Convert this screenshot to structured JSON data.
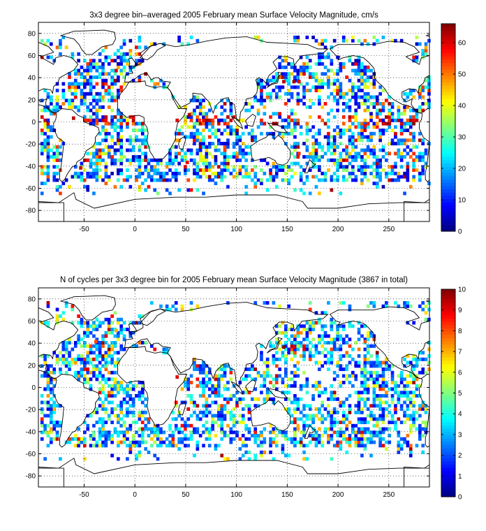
{
  "chart_data": [
    {
      "type": "heatmap",
      "title": "3x3 degree bin–averaged 2005 February mean Surface Velocity Magnitude, cm/s",
      "xlabel": "",
      "ylabel": "",
      "xlim": [
        -95,
        290
      ],
      "ylim": [
        -90,
        90
      ],
      "xticks": [
        -50,
        0,
        50,
        100,
        150,
        200,
        250
      ],
      "yticks": [
        80,
        60,
        40,
        20,
        0,
        -20,
        -40,
        -60,
        -80
      ],
      "grid": true,
      "bin_size_deg": 3,
      "colorbar": {
        "min": 0,
        "max": 66,
        "ticks": [
          0,
          10,
          20,
          30,
          40,
          50,
          60
        ],
        "colormap": "jet"
      },
      "bins_sample": [
        {
          "lon": -62,
          "lat": 2,
          "value": 62
        },
        {
          "lon": -50,
          "lat": 0,
          "value": 55
        },
        {
          "lon": -20,
          "lat": 45,
          "value": 60
        },
        {
          "lon": 40,
          "lat": 0,
          "value": 60
        },
        {
          "lon": 52,
          "lat": 5,
          "value": 64
        },
        {
          "lon": 62,
          "lat": 0,
          "value": 55
        },
        {
          "lon": 145,
          "lat": 35,
          "value": 62
        },
        {
          "lon": 155,
          "lat": 35,
          "value": 64
        },
        {
          "lon": 160,
          "lat": 35,
          "value": 60
        },
        {
          "lon": 225,
          "lat": -5,
          "value": 58
        },
        {
          "lon": 160,
          "lat": -30,
          "value": 55
        },
        {
          "lon": -55,
          "lat": -43,
          "value": 60
        },
        {
          "lon": 50,
          "lat": -38,
          "value": 58
        }
      ]
    },
    {
      "type": "heatmap",
      "title": "N of cycles per 3x3 degree bin for 2005 February mean Surface Velocity Magnitude (3867 in total)",
      "xlabel": "",
      "ylabel": "",
      "xlim": [
        -95,
        290
      ],
      "ylim": [
        -90,
        90
      ],
      "xticks": [
        -50,
        0,
        50,
        100,
        150,
        200,
        250
      ],
      "yticks": [
        80,
        60,
        40,
        20,
        0,
        -20,
        -40,
        -60,
        -80
      ],
      "grid": true,
      "bin_size_deg": 3,
      "total": 3867,
      "colorbar": {
        "min": 0,
        "max": 10,
        "ticks": [
          0,
          1,
          2,
          3,
          4,
          5,
          6,
          7,
          8,
          9,
          10
        ],
        "colormap": "jet"
      },
      "bins_sample": [
        {
          "lon": -30,
          "lat": 45,
          "value": 9
        },
        {
          "lon": -40,
          "lat": 40,
          "value": 8
        },
        {
          "lon": 40,
          "lat": 8,
          "value": 9
        },
        {
          "lon": 145,
          "lat": 35,
          "value": 10
        },
        {
          "lon": 155,
          "lat": 35,
          "value": 9
        },
        {
          "lon": 225,
          "lat": 40,
          "value": 8
        },
        {
          "lon": -20,
          "lat": 50,
          "value": 7
        },
        {
          "lon": 60,
          "lat": 0,
          "value": 8
        }
      ]
    }
  ]
}
